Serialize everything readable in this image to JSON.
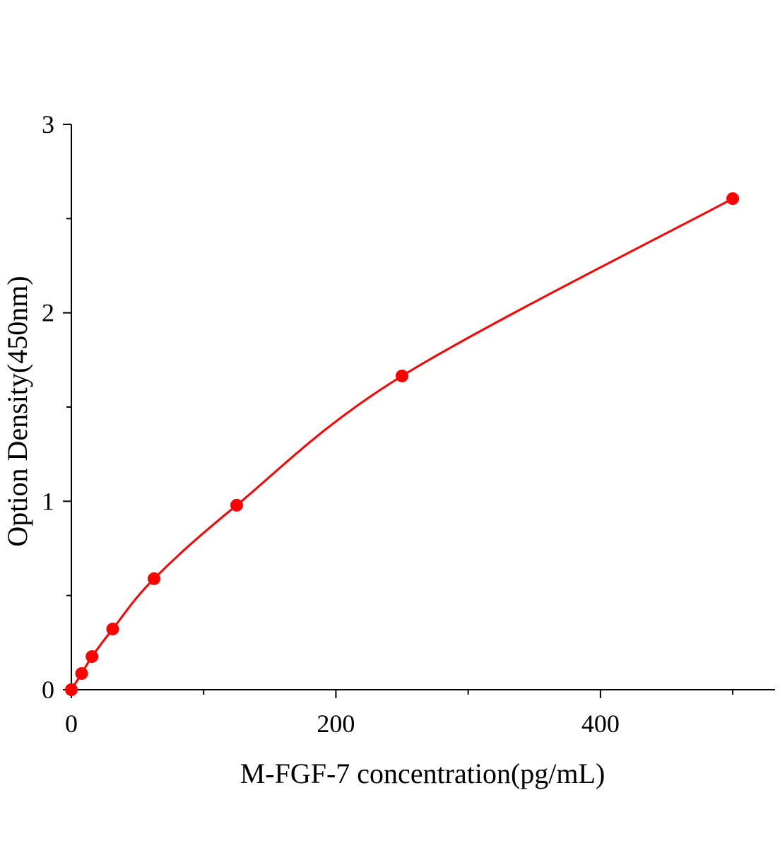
{
  "chart_data": {
    "type": "scatter",
    "x_label": "M-FGF-7 concentration(pg/mL)",
    "y_label": "Option Density(450nm)",
    "x": [
      0,
      7.8,
      15.6,
      31.25,
      62.5,
      125,
      250,
      500
    ],
    "series": [
      {
        "color": "#ff0000",
        "values": [
          0,
          0.086,
          0.176,
          0.322,
          0.589,
          0.979,
          1.665,
          2.606
        ]
      }
    ],
    "fit_line": true,
    "xlim": [
      0,
      532
    ],
    "xticks": [
      0,
      200,
      400
    ],
    "xminor_ticks": [
      100,
      300,
      500
    ],
    "ylim": [
      0,
      3
    ],
    "yticks": [
      0,
      1,
      2,
      3
    ],
    "yminor_ticks": [
      0.5,
      1.5,
      2.5
    ],
    "grid": false
  }
}
